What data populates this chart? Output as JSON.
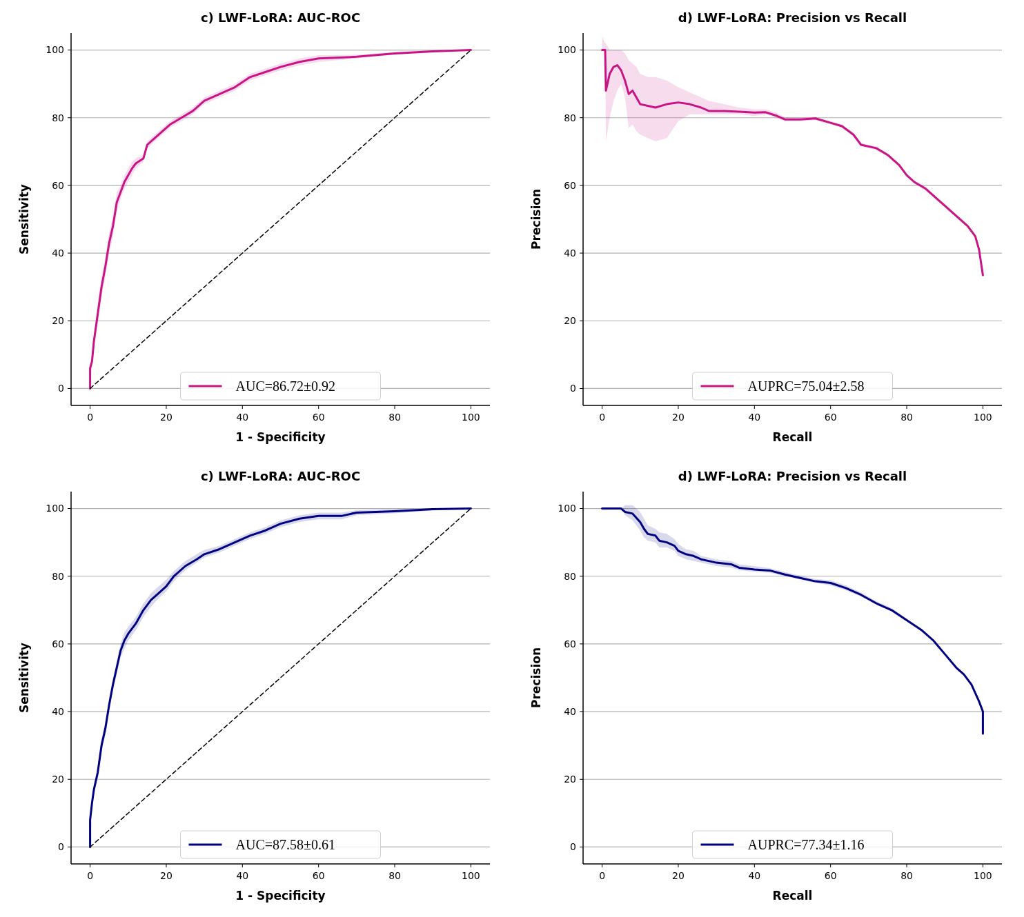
{
  "chart_data": [
    {
      "type": "line",
      "title": "c) LWF-LoRA: AUC-ROC",
      "xlabel": "1 - Specificity",
      "ylabel": "Sensitivity",
      "xlim": [
        -5,
        105
      ],
      "ylim": [
        -5,
        105
      ],
      "xticks": [
        0,
        20,
        40,
        60,
        80,
        100
      ],
      "yticks": [
        0,
        20,
        40,
        60,
        80,
        100
      ],
      "grid": "y",
      "legend": "bottom",
      "series": [
        {
          "name": "AUC=86.72±0.92",
          "color": "#c71585",
          "line_style": "solid",
          "x": [
            0,
            0,
            0.5,
            1,
            2,
            3,
            4,
            5,
            6,
            7,
            8,
            9,
            10,
            11,
            12,
            14,
            15,
            17,
            19,
            21,
            24,
            27,
            30,
            34,
            38,
            42,
            46,
            50,
            55,
            60,
            70,
            80,
            90,
            100
          ],
          "values": [
            0,
            6,
            8,
            14,
            22,
            30,
            36,
            43,
            48,
            55,
            58,
            61,
            63,
            65,
            66.5,
            68,
            72,
            74,
            76,
            78,
            80,
            82,
            85,
            87,
            89,
            92,
            93.5,
            95,
            96.5,
            97.5,
            98,
            99,
            99.6,
            100
          ],
          "lower": [
            0,
            5,
            6,
            12,
            19,
            27,
            33,
            40,
            45,
            52,
            56,
            59,
            61,
            63,
            65,
            67,
            71,
            73,
            75,
            77,
            79,
            81,
            84,
            86,
            88,
            91,
            92.5,
            94,
            95.5,
            96.5,
            97.5,
            98.6,
            99.3,
            100
          ],
          "upper": [
            0,
            7,
            10,
            16,
            25,
            33,
            39,
            46,
            51,
            58,
            60,
            63,
            65,
            67,
            68,
            69,
            73,
            75,
            77,
            79,
            81,
            83,
            86,
            88,
            90,
            93,
            94.5,
            96,
            97.5,
            98.5,
            98.6,
            99.4,
            99.9,
            100
          ]
        },
        {
          "type": "line",
          "color": "#000000",
          "line_style": "dashed",
          "x": [
            0,
            100
          ],
          "values": [
            0,
            100
          ]
        }
      ]
    },
    {
      "type": "line",
      "title": "d) LWF-LoRA: Precision vs Recall",
      "xlabel": "Recall",
      "ylabel": "Precision",
      "xlim": [
        -5,
        105
      ],
      "ylim": [
        -5,
        105
      ],
      "xticks": [
        0,
        20,
        40,
        60,
        80,
        100
      ],
      "yticks": [
        0,
        20,
        40,
        60,
        80,
        100
      ],
      "grid": "y",
      "legend": "bottom",
      "series": [
        {
          "name": "AUPRC=75.04±2.58",
          "color": "#c71585",
          "line_style": "solid",
          "x": [
            0,
            0.8,
            1,
            2,
            3,
            4,
            5,
            6,
            7,
            8,
            9,
            10,
            12,
            14,
            17,
            20,
            23,
            26,
            28,
            32,
            36,
            40,
            43,
            46,
            48,
            52,
            56,
            60,
            63,
            66,
            68,
            72,
            75,
            78,
            80,
            82,
            85,
            88,
            90,
            93,
            96,
            98,
            99,
            100
          ],
          "values": [
            100,
            100,
            88,
            93,
            95,
            95.5,
            94,
            91,
            87,
            88,
            86,
            84,
            83.5,
            83,
            84,
            84.5,
            84,
            83,
            82,
            82,
            81.8,
            81.5,
            81.6,
            80.5,
            79.5,
            79.5,
            79.8,
            78.5,
            77.5,
            75,
            72,
            71,
            69,
            66,
            63,
            61,
            59,
            56,
            54,
            51,
            48,
            45,
            41,
            33.5
          ],
          "lower": [
            100,
            100,
            73,
            80,
            85,
            88,
            90,
            86,
            77,
            78,
            76,
            75,
            74,
            73,
            74,
            79,
            81,
            81,
            81,
            81,
            81,
            80.5,
            81,
            79.8,
            79,
            79,
            79.3,
            78,
            77,
            74.5,
            71.5,
            70.5,
            68.5,
            65.5,
            62.5,
            60.5,
            58.5,
            55.5,
            53.5,
            50.5,
            47.5,
            44.5,
            40.5,
            33
          ],
          "upper": [
            104,
            102,
            102,
            100,
            100,
            100,
            100,
            99,
            97,
            96,
            95,
            93,
            92,
            92,
            91,
            89,
            87.5,
            86,
            85,
            84,
            83,
            82.5,
            82.5,
            81.3,
            80.2,
            80.1,
            80.3,
            79,
            78,
            75.5,
            72.5,
            71.5,
            69.5,
            66.5,
            63.5,
            61.5,
            59.5,
            56.5,
            54.5,
            51.5,
            48.5,
            45.5,
            41.5,
            34
          ]
        }
      ]
    },
    {
      "type": "line",
      "title": "c) LWF-LoRA: AUC-ROC",
      "xlabel": "1 - Specificity",
      "ylabel": "Sensitivity",
      "xlim": [
        -5,
        105
      ],
      "ylim": [
        -5,
        105
      ],
      "xticks": [
        0,
        20,
        40,
        60,
        80,
        100
      ],
      "yticks": [
        0,
        20,
        40,
        60,
        80,
        100
      ],
      "grid": "y",
      "legend": "bottom",
      "series": [
        {
          "name": "AUC=87.58±0.61",
          "color": "#000080",
          "line_style": "solid",
          "x": [
            0,
            0,
            0.5,
            1,
            2,
            3,
            4,
            5,
            6,
            7,
            8,
            9,
            10,
            12,
            14,
            16,
            18,
            20,
            22,
            25,
            28,
            30,
            34,
            38,
            42,
            46,
            50,
            55,
            60,
            66,
            70,
            80,
            90,
            100
          ],
          "values": [
            0,
            8,
            13,
            17,
            22,
            30,
            35,
            42,
            48,
            53,
            58,
            61,
            63,
            66,
            70,
            73,
            75,
            77,
            80,
            83,
            85,
            86.5,
            88,
            90,
            92,
            93.5,
            95.5,
            97,
            97.8,
            97.8,
            98.8,
            99.2,
            99.8,
            100
          ],
          "lower": [
            0,
            7,
            12,
            15.5,
            20,
            28,
            33,
            40,
            46,
            51,
            56,
            58.5,
            61,
            64,
            68,
            71,
            73.5,
            75.5,
            78.5,
            81.8,
            84,
            85.5,
            87,
            89,
            91,
            92.5,
            94.5,
            96,
            96.8,
            96.8,
            98,
            98.6,
            99.4,
            100
          ],
          "upper": [
            0,
            9,
            14,
            18.5,
            24,
            32,
            37,
            44,
            50,
            55,
            60,
            63.5,
            65,
            68,
            72,
            75,
            77,
            79,
            81.5,
            84.5,
            86.5,
            87.8,
            89,
            91,
            93,
            94.5,
            96.5,
            98,
            98.8,
            98.8,
            99.5,
            99.8,
            100,
            100
          ]
        },
        {
          "type": "line",
          "color": "#000000",
          "line_style": "dashed",
          "x": [
            0,
            100
          ],
          "values": [
            0,
            100
          ]
        }
      ]
    },
    {
      "type": "line",
      "title": "d) LWF-LoRA: Precision vs Recall",
      "xlabel": "Recall",
      "ylabel": "Precision",
      "xlim": [
        -5,
        105
      ],
      "ylim": [
        -5,
        105
      ],
      "xticks": [
        0,
        20,
        40,
        60,
        80,
        100
      ],
      "yticks": [
        0,
        20,
        40,
        60,
        80,
        100
      ],
      "grid": "y",
      "legend": "bottom",
      "series": [
        {
          "name": "AUPRC=77.34±1.16",
          "color": "#000080",
          "line_style": "solid",
          "x": [
            0,
            5,
            6,
            8,
            10,
            11,
            12,
            14,
            15,
            17,
            19,
            20,
            22,
            24,
            26,
            28,
            30,
            34,
            36,
            40,
            44,
            48,
            52,
            56,
            60,
            64,
            68,
            72,
            76,
            80,
            84,
            87,
            90,
            93,
            95,
            97,
            99,
            100,
            100
          ],
          "values": [
            100,
            100,
            99,
            98.5,
            96,
            94,
            92.5,
            92,
            90.5,
            90,
            89,
            87.5,
            86.5,
            86,
            85,
            84.5,
            84,
            83.5,
            82.5,
            82,
            81.7,
            80.5,
            79.5,
            78.5,
            78,
            76.5,
            74.5,
            72,
            70,
            67,
            64,
            61,
            57,
            53,
            51,
            48,
            43,
            40,
            33.5
          ],
          "lower": [
            100,
            100,
            98,
            96.5,
            93.5,
            91.5,
            90.5,
            90,
            88.5,
            88.5,
            87.5,
            86,
            85,
            84.5,
            84,
            83.5,
            83,
            82.5,
            81.8,
            81.3,
            81,
            80,
            79,
            78,
            77.3,
            75.8,
            74,
            71.5,
            69.5,
            66.6,
            63.6,
            60.6,
            56.6,
            52.6,
            50.6,
            47.6,
            42.6,
            39.6,
            33.5
          ],
          "upper": [
            100,
            100,
            101,
            101,
            99,
            97,
            95,
            94,
            93,
            92.5,
            91,
            89.5,
            88,
            87.5,
            86,
            85.5,
            85,
            84.5,
            83.5,
            83,
            82.4,
            81.2,
            80.2,
            79.2,
            78.8,
            77.3,
            75.2,
            72.6,
            70.6,
            67.4,
            64.4,
            61.4,
            57.4,
            53.4,
            51.4,
            48.4,
            43.4,
            40.4,
            33.5
          ]
        }
      ]
    }
  ]
}
